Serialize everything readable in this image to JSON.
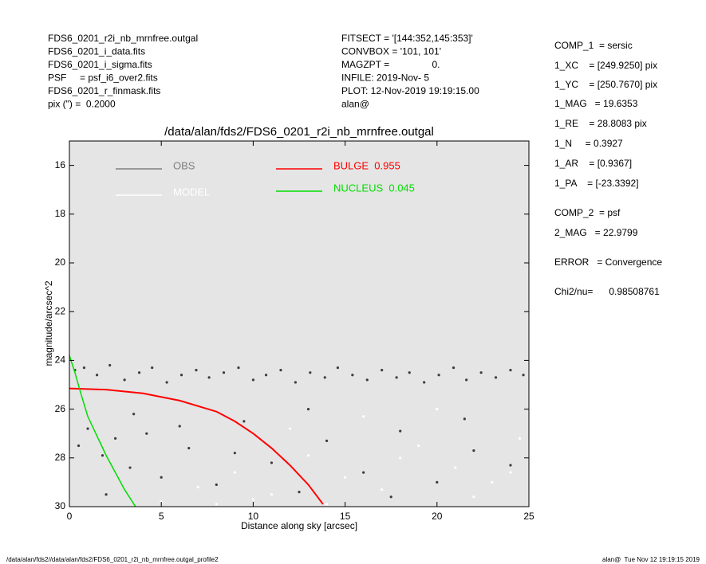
{
  "header": {
    "left": [
      "FDS6_0201_r2i_nb_mrnfree.outgal",
      "FDS6_0201_i_data.fits",
      "FDS6_0201_i_sigma.fits",
      "PSF     = psf_i6_over2.fits",
      "FDS6_0201_r_finmask.fits",
      "pix (\") =  0.2000"
    ],
    "middle": [
      "FITSECT = '[144:352,145:353]'",
      "CONVBOX = '101, 101'",
      "MAGZPT =                0.",
      "INFILE: 2019-Nov- 5",
      "PLOT: 12-Nov-2019 19:19:15.00",
      "alan@"
    ]
  },
  "params": [
    "COMP_1  = sersic",
    "1_XC    = [249.9250] pix",
    "1_YC    = [250.7670] pix",
    "1_MAG   = 19.6353",
    "1_RE    = 28.8083 pix",
    "1_N     = 0.3927",
    "1_AR    = [0.9367]",
    "1_PA    = [-23.3392]",
    "COMP_2  = psf",
    "2_MAG   = 22.9799",
    "ERROR   = Convergence",
    "Chi2/nu=      0.98508761"
  ],
  "footer": {
    "left": "/data/alan/fds2//data/alan/fds2/FDS6_0201_r2i_nb_mrnfree.outgal_profile2",
    "right": "alan@  Tue Nov 12 19:19:15 2019"
  },
  "chart_data": {
    "type": "scatter",
    "title": "/data/alan/fds2/FDS6_0201_r2i_nb_mrnfree.outgal",
    "x_label": "Distance along sky [arcsec]",
    "y_label": "magnitude/arcsec^2",
    "xlim": [
      0,
      25
    ],
    "xticks": [
      0,
      5,
      10,
      15,
      20,
      25
    ],
    "ylim": [
      30,
      15
    ],
    "yticks": [
      16,
      18,
      20,
      22,
      24,
      26,
      28,
      30
    ],
    "background": "#e5e5e5",
    "series": [
      {
        "name": "OBS",
        "color": "#808080",
        "point_color": "#3c3c3c",
        "kind": "points",
        "x": [
          0.3,
          0.8,
          1.5,
          2.2,
          3.0,
          3.8,
          4.5,
          5.3,
          6.1,
          6.9,
          7.6,
          8.4,
          9.2,
          10.0,
          10.7,
          11.5,
          12.3,
          13.1,
          13.9,
          14.6,
          15.4,
          16.2,
          17.0,
          17.8,
          18.5,
          19.3,
          20.1,
          20.9,
          21.6,
          22.4,
          23.2,
          24.0,
          24.7,
          0.5,
          1.0,
          1.8,
          2.5,
          3.3,
          4.2,
          5.0,
          6.5,
          8.0,
          9.5,
          11.0,
          12.5,
          14.0,
          16.0,
          18.0,
          20.0,
          22.0,
          24.0,
          2.0,
          3.5,
          6.0,
          9.0,
          13.0,
          17.5,
          21.5
        ],
        "values": [
          24.4,
          24.3,
          24.6,
          24.2,
          24.8,
          24.5,
          24.3,
          24.9,
          24.6,
          24.4,
          24.7,
          24.5,
          24.3,
          24.8,
          24.6,
          24.4,
          24.9,
          24.5,
          24.7,
          24.3,
          24.6,
          24.8,
          24.4,
          24.7,
          24.5,
          24.9,
          24.6,
          24.3,
          24.8,
          24.5,
          24.7,
          24.4,
          24.6,
          27.5,
          26.8,
          27.9,
          27.2,
          28.4,
          27.0,
          28.8,
          27.6,
          29.1,
          26.5,
          28.2,
          29.4,
          27.3,
          28.6,
          26.9,
          29.0,
          27.7,
          28.3,
          29.5,
          26.2,
          26.7,
          27.8,
          26.0,
          29.6,
          26.4
        ]
      },
      {
        "name": "MODEL",
        "color": "#ffffff",
        "point_color": "#ffffff",
        "kind": "points",
        "x": [
          5,
          7,
          9,
          11,
          13,
          15,
          17,
          19,
          21,
          23,
          24.5,
          12,
          16,
          20,
          22,
          18,
          14,
          10,
          8,
          24
        ],
        "values": [
          29.8,
          29.2,
          28.6,
          29.5,
          27.9,
          28.8,
          29.3,
          27.5,
          28.4,
          29.0,
          27.2,
          26.8,
          26.3,
          26.0,
          29.6,
          28.0,
          29.9,
          29.7,
          29.9,
          28.6
        ]
      },
      {
        "name": "BULGE  0.955",
        "color": "#ff0000",
        "kind": "line",
        "x": [
          0,
          2,
          4,
          6,
          8,
          9,
          10,
          11,
          12,
          13,
          13.8
        ],
        "values": [
          25.15,
          25.2,
          25.35,
          25.65,
          26.1,
          26.5,
          27.0,
          27.6,
          28.3,
          29.1,
          29.9
        ]
      },
      {
        "name": "NUCLEUS  0.045",
        "color": "#00dd00",
        "kind": "line",
        "x": [
          0,
          0.3,
          0.6,
          1.0,
          1.5,
          2.0,
          2.5,
          3.0,
          3.6
        ],
        "values": [
          23.8,
          24.5,
          25.3,
          26.3,
          27.1,
          27.9,
          28.6,
          29.3,
          30
        ]
      }
    ]
  }
}
